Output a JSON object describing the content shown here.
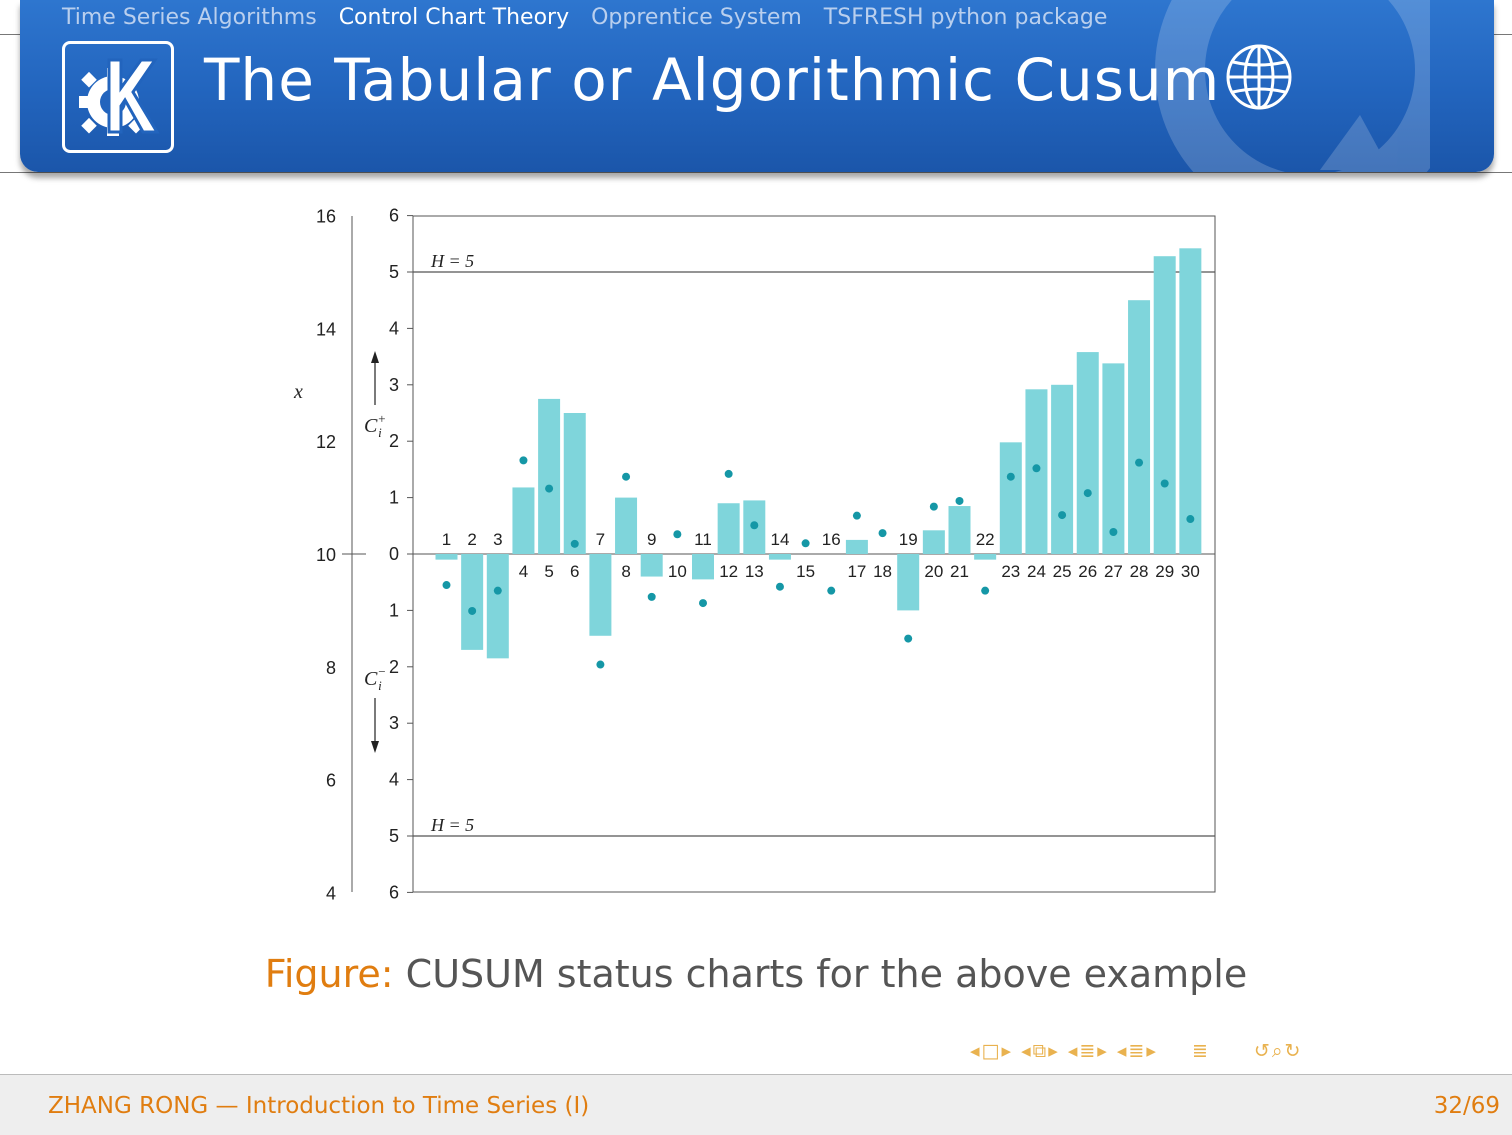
{
  "header": {
    "nav": [
      "Time Series Algorithms",
      "Control Chart Theory",
      "Opprentice System",
      "TSFRESH python package"
    ],
    "title": "The Tabular or Algorithmic Cusum"
  },
  "chart_data": {
    "type": "bar",
    "left_axis": {
      "label": "x",
      "ticks": [
        "16",
        "14",
        "12",
        "10",
        "8",
        "6",
        "4"
      ]
    },
    "upper_axis": {
      "label": "C_i^+",
      "ticks": [
        "6",
        "5",
        "4",
        "3",
        "2",
        "1",
        "0"
      ],
      "ylim": [
        0,
        6
      ]
    },
    "lower_axis": {
      "label": "C_i^-",
      "ticks": [
        "1",
        "2",
        "3",
        "4",
        "5",
        "6"
      ],
      "ylim": [
        0,
        6
      ]
    },
    "h_upper_label": "H = 5",
    "h_lower_label": "H = 5",
    "h_value": 5,
    "categories": [
      1,
      2,
      3,
      4,
      5,
      6,
      7,
      8,
      9,
      10,
      11,
      12,
      13,
      14,
      15,
      16,
      17,
      18,
      19,
      20,
      21,
      22,
      23,
      24,
      25,
      26,
      27,
      28,
      29,
      30
    ],
    "series": [
      {
        "values": [
          -0.1,
          -1.7,
          -1.85,
          1.18,
          2.75,
          2.5,
          -1.45,
          1.0,
          -0.4,
          0.0,
          -0.45,
          0.9,
          0.95,
          -0.1,
          0.0,
          0.0,
          0.25,
          0.0,
          -1.0,
          0.42,
          0.85,
          -0.1,
          1.98,
          2.92,
          3.0,
          3.58,
          3.38,
          4.5,
          5.28,
          5.42
        ]
      },
      {
        "values": [
          9.45,
          8.99,
          9.35,
          11.66,
          11.16,
          10.18,
          8.04,
          11.37,
          9.24,
          10.35,
          9.13,
          11.42,
          10.51,
          9.42,
          10.19,
          9.35,
          10.68,
          10.37,
          8.5,
          10.84,
          10.94,
          9.35,
          11.37,
          11.52,
          10.69,
          11.08,
          10.39,
          11.62,
          11.25,
          10.62
        ]
      }
    ],
    "colors": {
      "bar": "#7fd5db",
      "point": "#1597a6"
    }
  },
  "caption": {
    "prefix": "Figure:",
    "text": "CUSUM status charts for the above example"
  },
  "footer": {
    "left": "ZHANG RONG — Introduction to Time Series (I)",
    "right": "32/69"
  },
  "beamer_nav_icons": [
    "prev-frame",
    "frame",
    "next-frame",
    "prev-subsection",
    "subsection",
    "next-subsection",
    "prev-section",
    "section",
    "next-section",
    "toc",
    "back",
    "search",
    "forward"
  ]
}
